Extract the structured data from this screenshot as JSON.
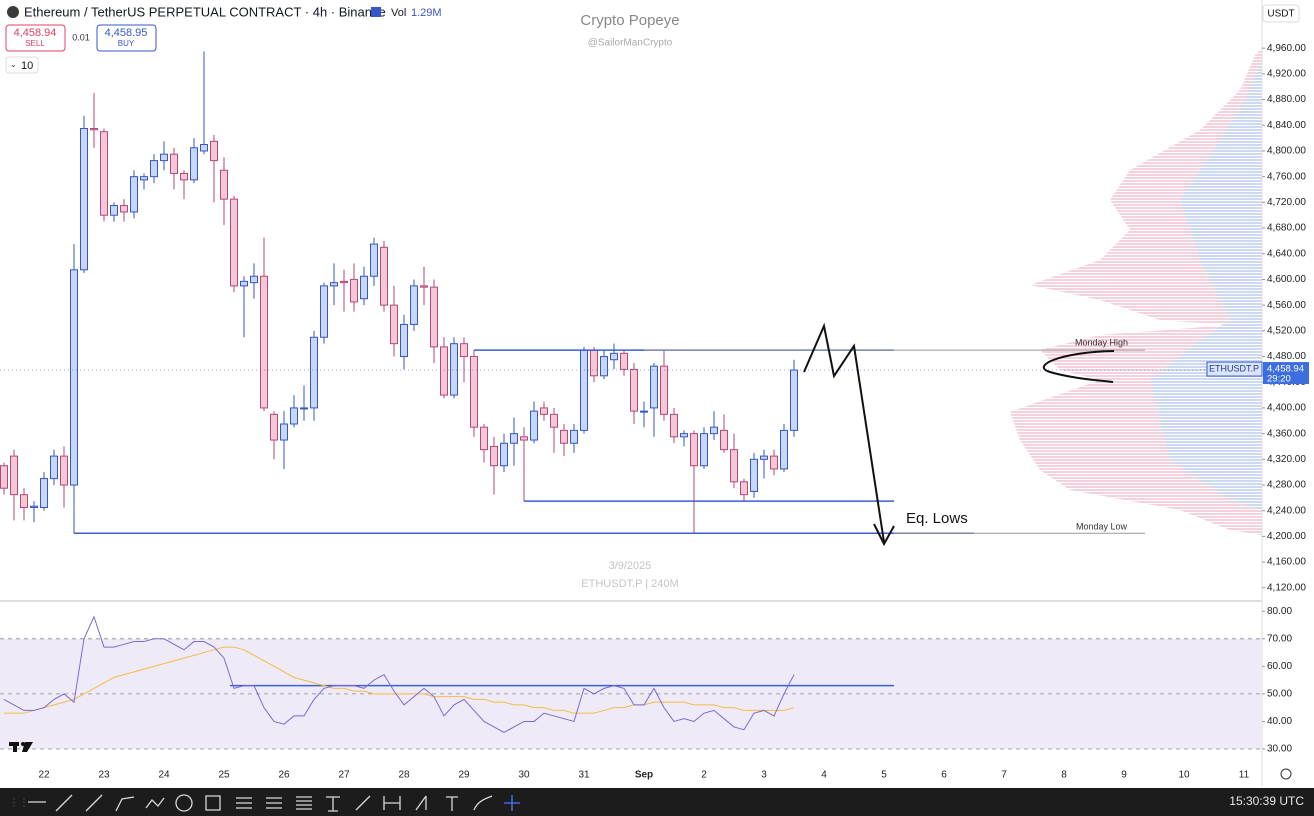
{
  "header": {
    "symbol": "Ethereum / TetherUS PERPETUAL CONTRACT · 4h · Binance",
    "vol_label": "Vol",
    "vol_value": "1.29M",
    "sell_price": "4,458.94",
    "sell_label": "SELL",
    "spread": "0.01",
    "buy_price": "4,458.95",
    "buy_label": "BUY",
    "quantity": "10",
    "currency": "USDT"
  },
  "watermark": {
    "title": "Crypto Popeye",
    "handle": "@SailorManCrypto",
    "date": "3/9/2025",
    "symbol_info": "ETHUSDT.P | 240M"
  },
  "last_price": {
    "symbol": "ETHUSDT.P",
    "price": "4,458.94",
    "countdown": "29:20"
  },
  "footer": {
    "time": "15:30:39 UTC"
  },
  "chart_data": [
    {
      "type": "candlestick",
      "open": [
        4310,
        4325,
        4265,
        4245,
        4245,
        4290,
        4325,
        4280,
        4615,
        4835,
        4830,
        4700,
        4715,
        4705,
        4755,
        4760,
        4785,
        4795,
        4765,
        4755,
        4800,
        4815,
        4770,
        4725,
        4590,
        4595,
        4605,
        4390,
        4350,
        4375,
        4400,
        4400,
        4510,
        4590,
        4597,
        4600,
        4570,
        4605,
        4650,
        4560,
        4480,
        4530,
        4590,
        4588,
        4495,
        4420,
        4500,
        4480,
        4370,
        4340,
        4310,
        4345,
        4355,
        4350,
        4400,
        4390,
        4365,
        4345,
        4365,
        4490,
        4450,
        4475,
        4485,
        4460,
        4395,
        4400,
        4465,
        4390,
        4355,
        4360,
        4310,
        4360,
        4365,
        4335,
        4285,
        4270,
        4320,
        4325,
        4305,
        4365
      ],
      "high": [
        4315,
        4335,
        4275,
        4255,
        4300,
        4335,
        4340,
        4655,
        4855,
        4890,
        4835,
        4720,
        4725,
        4770,
        4765,
        4795,
        4815,
        4805,
        4770,
        4820,
        4955,
        4825,
        4790,
        4730,
        4605,
        4625,
        4665,
        4395,
        4395,
        4420,
        4435,
        4520,
        4595,
        4625,
        4615,
        4625,
        4620,
        4665,
        4660,
        4590,
        4545,
        4600,
        4620,
        4600,
        4510,
        4510,
        4510,
        4490,
        4375,
        4355,
        4360,
        4385,
        4370,
        4410,
        4410,
        4400,
        4375,
        4375,
        4495,
        4495,
        4490,
        4500,
        4490,
        4470,
        4410,
        4470,
        4490,
        4400,
        4365,
        4365,
        4370,
        4395,
        4390,
        4360,
        4290,
        4330,
        4335,
        4335,
        4375,
        4475
      ],
      "low": [
        4265,
        4225,
        4225,
        4222,
        4240,
        4280,
        4245,
        4205,
        4610,
        4805,
        4690,
        4690,
        4690,
        4695,
        4740,
        4750,
        4770,
        4740,
        4725,
        4750,
        4795,
        4720,
        4685,
        4580,
        4510,
        4570,
        4395,
        4320,
        4305,
        4370,
        4380,
        4380,
        4500,
        4560,
        4550,
        4550,
        4560,
        4590,
        4550,
        4480,
        4460,
        4520,
        4560,
        4470,
        4415,
        4415,
        4440,
        4355,
        4315,
        4265,
        4300,
        4310,
        4255,
        4345,
        4380,
        4330,
        4325,
        4330,
        4360,
        4440,
        4445,
        4460,
        4450,
        4375,
        4370,
        4355,
        4380,
        4345,
        4340,
        4205,
        4305,
        4350,
        4330,
        4275,
        4255,
        4260,
        4290,
        4295,
        4300,
        4355
      ],
      "close": [
        4275,
        4265,
        4245,
        4247,
        4290,
        4325,
        4280,
        4615,
        4835,
        4833,
        4700,
        4715,
        4705,
        4760,
        4760,
        4785,
        4795,
        4765,
        4755,
        4805,
        4810,
        4785,
        4725,
        4590,
        4597,
        4605,
        4400,
        4350,
        4375,
        4400,
        4400,
        4510,
        4590,
        4595,
        4595,
        4565,
        4605,
        4655,
        4560,
        4500,
        4530,
        4590,
        4588,
        4495,
        4420,
        4500,
        4480,
        4370,
        4335,
        4310,
        4345,
        4360,
        4350,
        4395,
        4390,
        4370,
        4345,
        4365,
        4490,
        4450,
        4480,
        4485,
        4460,
        4395,
        4395,
        4465,
        4390,
        4355,
        4360,
        4310,
        4360,
        4370,
        4335,
        4285,
        4265,
        4320,
        4325,
        4305,
        4365,
        4458.94
      ],
      "up_color": "#c7d7f6",
      "up_border": "#3656c8",
      "down_color": "#f5c8d8",
      "down_border": "#b5477a",
      "ylim": [
        4101,
        5035
      ],
      "yticks": [
        {
          "value": 4960,
          "label": "4,960.00"
        },
        {
          "value": 4920,
          "label": "4,920.00"
        },
        {
          "value": 4880,
          "label": "4,880.00"
        },
        {
          "value": 4840,
          "label": "4,840.00"
        },
        {
          "value": 4800,
          "label": "4,800.00"
        },
        {
          "value": 4760,
          "label": "4,760.00"
        },
        {
          "value": 4720,
          "label": "4,720.00"
        },
        {
          "value": 4680,
          "label": "4,680.00"
        },
        {
          "value": 4640,
          "label": "4,640.00"
        },
        {
          "value": 4600,
          "label": "4,600.00"
        },
        {
          "value": 4560,
          "label": "4,560.00"
        },
        {
          "value": 4520,
          "label": "4,520.00"
        },
        {
          "value": 4480,
          "label": "4,480.00"
        },
        {
          "value": 4440,
          "label": "4,440.00"
        },
        {
          "value": 4400,
          "label": "4,400.00"
        },
        {
          "value": 4360,
          "label": "4,360.00"
        },
        {
          "value": 4320,
          "label": "4,320.00"
        },
        {
          "value": 4280,
          "label": "4,280.00"
        },
        {
          "value": 4240,
          "label": "4,240.00"
        },
        {
          "value": 4200,
          "label": "4,200.00"
        },
        {
          "value": 4160,
          "label": "4,160.00"
        },
        {
          "value": 4120,
          "label": "4,120.00"
        }
      ],
      "xtick_labels": [
        "22",
        "23",
        "24",
        "25",
        "26",
        "27",
        "28",
        "29",
        "30",
        "31",
        "Sep",
        "2",
        "3",
        "4",
        "5",
        "6",
        "7",
        "8",
        "9",
        "10",
        "11"
      ],
      "hlines": [
        {
          "value": 4490,
          "color": "#3a5fd0"
        },
        {
          "value": 4255,
          "color": "#3a5fd0"
        },
        {
          "value": 4205,
          "color": "#3a5fd0"
        }
      ],
      "annotations": [
        {
          "label": "Monday High",
          "value": 4490
        },
        {
          "label": "Monday Low",
          "value": 4205
        },
        {
          "label": "Eq. Lows",
          "value": 4255
        }
      ],
      "grid": false
    },
    {
      "type": "line",
      "values": [
        48,
        46,
        44,
        44,
        45,
        48,
        50,
        47,
        70,
        78,
        67,
        67,
        68,
        69,
        69,
        70,
        70,
        68,
        66,
        69,
        69,
        67,
        63,
        52,
        53,
        53,
        45,
        40,
        39,
        42,
        42,
        48,
        52,
        53,
        53,
        53,
        52,
        55,
        57,
        51,
        46,
        49,
        52,
        49,
        42,
        46,
        48,
        44,
        40,
        38,
        36,
        38,
        40,
        40,
        43,
        42,
        41,
        40,
        52,
        50,
        52,
        53,
        52,
        46,
        46,
        52,
        45,
        40,
        41,
        40,
        43,
        44,
        41,
        38,
        37,
        43,
        44,
        42,
        50,
        57
      ],
      "ma_values": [
        43,
        43,
        43,
        44,
        45,
        46,
        47,
        48,
        50,
        52,
        54,
        56,
        57,
        58,
        59,
        60,
        61,
        62,
        63,
        64,
        65,
        66,
        67,
        67,
        66,
        64,
        62,
        60,
        58,
        56,
        55,
        54,
        53,
        52,
        52,
        51,
        51,
        50,
        50,
        50,
        50,
        50,
        50,
        49,
        49,
        49,
        49,
        48,
        48,
        47,
        47,
        46,
        46,
        45,
        45,
        44,
        44,
        43,
        43,
        43,
        44,
        45,
        45,
        46,
        46,
        47,
        47,
        47,
        47,
        46,
        46,
        46,
        45,
        45,
        44,
        44,
        44,
        44,
        44,
        45
      ],
      "color": "#7b6ad4",
      "ma_color": "#f2bd45",
      "ylim": [
        26,
        83
      ],
      "yticks": [
        {
          "value": 80,
          "label": "80.00"
        },
        {
          "value": 70,
          "label": "70.00"
        },
        {
          "value": 60,
          "label": "60.00"
        },
        {
          "value": 50,
          "label": "50.00"
        },
        {
          "value": 40,
          "label": "40.00"
        },
        {
          "value": 30,
          "label": "30.00"
        }
      ],
      "levels": [
        30,
        50,
        70
      ],
      "hline": 53
    }
  ]
}
